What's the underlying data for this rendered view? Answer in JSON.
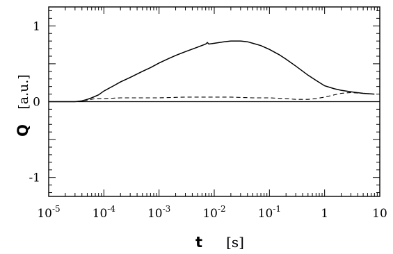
{
  "chart_data": {
    "type": "line",
    "title": "",
    "xlabel": "t",
    "xunit": "[s]",
    "ylabel": "Q",
    "yunit": "[a.u.]",
    "xscale": "log",
    "xlim": [
      1e-05,
      10
    ],
    "ylim": [
      -1.25,
      1.25
    ],
    "grid": false,
    "legend": "none",
    "x_ticks": [
      {
        "value": 1e-05,
        "base": "10",
        "exp": "-5"
      },
      {
        "value": 0.0001,
        "base": "10",
        "exp": "-4"
      },
      {
        "value": 0.001,
        "base": "10",
        "exp": "-3"
      },
      {
        "value": 0.01,
        "base": "10",
        "exp": "-2"
      },
      {
        "value": 0.1,
        "base": "10",
        "exp": "-1"
      },
      {
        "value": 1,
        "base": "1",
        "exp": ""
      },
      {
        "value": 10,
        "base": "10",
        "exp": ""
      }
    ],
    "y_ticks": [
      {
        "value": 1,
        "label": "1"
      },
      {
        "value": 0,
        "label": "0"
      },
      {
        "value": -1,
        "label": "-1"
      }
    ],
    "reference_line": {
      "y": 0
    },
    "series": [
      {
        "style": "solid",
        "x": [
          1e-05,
          3e-05,
          4e-05,
          5e-05,
          6e-05,
          8e-05,
          0.0001,
          0.00015,
          0.0002,
          0.0003,
          0.0005,
          0.0007,
          0.001,
          0.0015,
          0.002,
          0.003,
          0.005,
          0.007,
          0.0075,
          0.008,
          0.01,
          0.015,
          0.02,
          0.03,
          0.04,
          0.05,
          0.07,
          0.1,
          0.15,
          0.2,
          0.3,
          0.5,
          0.7,
          1,
          1.5,
          2,
          3,
          5,
          8
        ],
        "y": [
          0,
          0,
          0.01,
          0.03,
          0.05,
          0.09,
          0.14,
          0.21,
          0.26,
          0.32,
          0.4,
          0.45,
          0.51,
          0.57,
          0.61,
          0.66,
          0.72,
          0.76,
          0.78,
          0.76,
          0.77,
          0.79,
          0.8,
          0.8,
          0.79,
          0.77,
          0.74,
          0.69,
          0.62,
          0.56,
          0.47,
          0.35,
          0.28,
          0.21,
          0.17,
          0.15,
          0.13,
          0.11,
          0.1
        ]
      },
      {
        "style": "dashed",
        "x": [
          1e-05,
          3e-05,
          5e-05,
          7e-05,
          0.0001,
          0.0002,
          0.0005,
          0.001,
          0.003,
          0.01,
          0.02,
          0.05,
          0.1,
          0.2,
          0.3,
          0.5,
          0.7,
          1,
          1.5,
          2,
          3,
          5,
          8
        ],
        "y": [
          0,
          0,
          0.02,
          0.04,
          0.04,
          0.05,
          0.05,
          0.05,
          0.06,
          0.06,
          0.06,
          0.05,
          0.05,
          0.04,
          0.03,
          0.03,
          0.04,
          0.06,
          0.09,
          0.11,
          0.12,
          0.11,
          0.1
        ]
      }
    ]
  }
}
